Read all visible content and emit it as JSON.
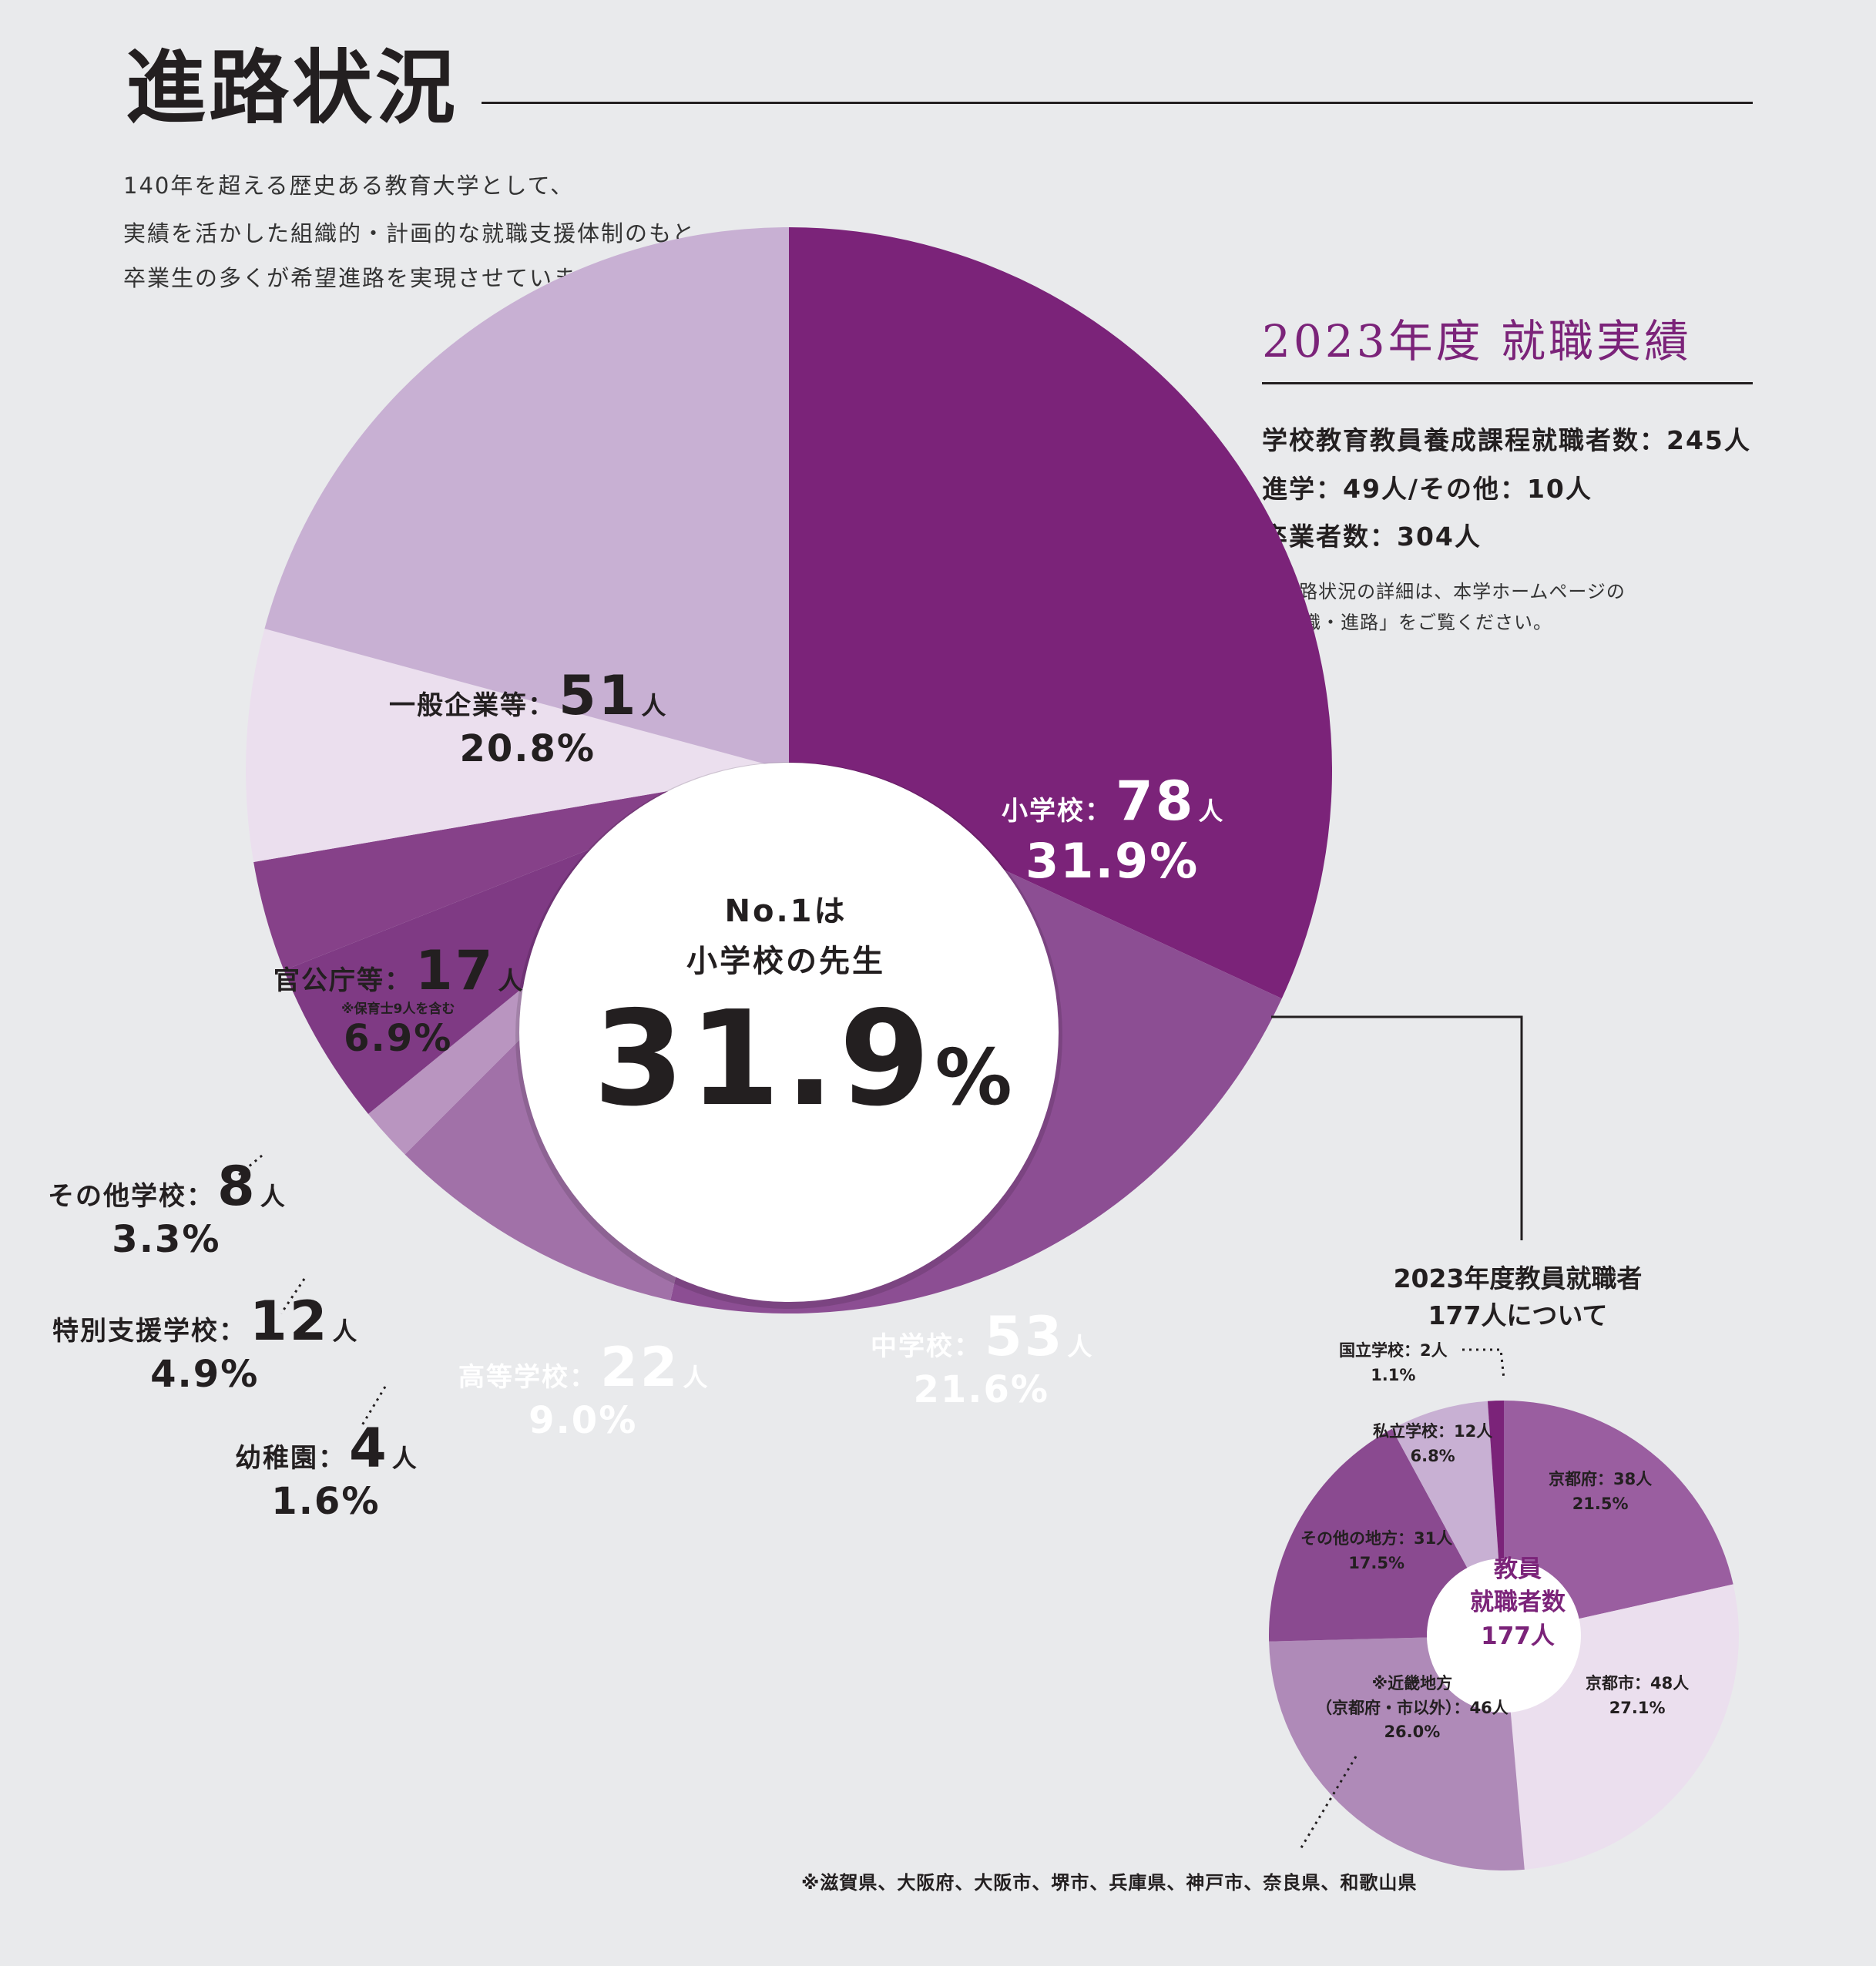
{
  "header": {
    "title": "進路状況",
    "intro": [
      "140年を超える歴史ある教育大学として、",
      "実績を活かした組織的・計画的な就職支援体制のもと、",
      "卒業生の多くが希望進路を実現させています。"
    ]
  },
  "summary": {
    "title": "2023年度 就職実績",
    "lines": [
      "学校教育教員養成課程就職者数：245人",
      "進学：49人/その他：10人",
      "卒業者数：304人"
    ],
    "note": [
      "※進路状況の詳細は、本学ホームページの",
      "「就職・進路」をご覧ください。"
    ]
  },
  "chart_data": [
    {
      "type": "pie",
      "variant": "donut",
      "center": {
        "line1": "No.1は",
        "line2": "小学校の先生",
        "value": "31.9",
        "unit": "%"
      },
      "slices": [
        {
          "label": "小学校",
          "count": 78,
          "unit": "人",
          "percent": 31.9,
          "pct_text": "31.9%",
          "color": "#7b2379",
          "text_color": "#ffffff"
        },
        {
          "label": "中学校",
          "count": 53,
          "unit": "人",
          "percent": 21.6,
          "pct_text": "21.6%",
          "color": "#8c4e93",
          "text_color": "#ffffff"
        },
        {
          "label": "高等学校",
          "count": 22,
          "unit": "人",
          "percent": 9.0,
          "pct_text": "9.0%",
          "color": "#a171a8",
          "text_color": "#ffffff"
        },
        {
          "label": "幼稚園",
          "count": 4,
          "unit": "人",
          "percent": 1.6,
          "pct_text": "1.6%",
          "color": "#b995c0",
          "text_color": "#231f20"
        },
        {
          "label": "特別支援学校",
          "count": 12,
          "unit": "人",
          "percent": 4.9,
          "pct_text": "4.9%",
          "color": "#7f3a84",
          "text_color": "#231f20"
        },
        {
          "label": "その他学校",
          "count": 8,
          "unit": "人",
          "percent": 3.3,
          "pct_text": "3.3%",
          "color": "#864189",
          "text_color": "#231f20"
        },
        {
          "label": "官公庁等",
          "count": 17,
          "unit": "人",
          "percent": 6.9,
          "pct_text": "6.9%",
          "color": "#ebdfee",
          "text_color": "#231f20",
          "note": "※保育士9人を含む"
        },
        {
          "label": "一般企業等",
          "count": 51,
          "unit": "人",
          "percent": 20.8,
          "pct_text": "20.8%",
          "color": "#c8b0d3",
          "text_color": "#231f20"
        }
      ]
    },
    {
      "type": "pie",
      "variant": "donut",
      "title": [
        "2023年度教員就職者",
        "177人について"
      ],
      "center": [
        "教員",
        "就職者数",
        "177人"
      ],
      "slices": [
        {
          "label": "京都府",
          "count": 38,
          "percent": 21.5,
          "text": [
            "京都府：38人",
            "21.5%"
          ],
          "color": "#9a5ea0"
        },
        {
          "label": "京都市",
          "count": 48,
          "percent": 27.1,
          "text": [
            "京都市：48人",
            "27.1%"
          ],
          "color": "#ebdfee"
        },
        {
          "label": "近畿地方（京都府・市以外）",
          "count": 46,
          "percent": 26.0,
          "text": [
            "※近畿地方",
            "（京都府・市以外）：46人",
            "26.0%"
          ],
          "color": "#af8ab8"
        },
        {
          "label": "その他の地方",
          "count": 31,
          "percent": 17.5,
          "text": [
            "その他の地方：31人",
            "17.5%"
          ],
          "color": "#8a4a90"
        },
        {
          "label": "私立学校",
          "count": 12,
          "percent": 6.8,
          "text": [
            "私立学校：12人",
            "6.8%"
          ],
          "color": "#c8b0d3"
        },
        {
          "label": "国立学校",
          "count": 2,
          "percent": 1.1,
          "text": [
            "国立学校：2人",
            "1.1%"
          ],
          "color": "#7b2379"
        }
      ],
      "footnote": "※滋賀県、大阪府、大阪市、堺市、兵庫県、神戸市、奈良県、和歌山県"
    }
  ]
}
